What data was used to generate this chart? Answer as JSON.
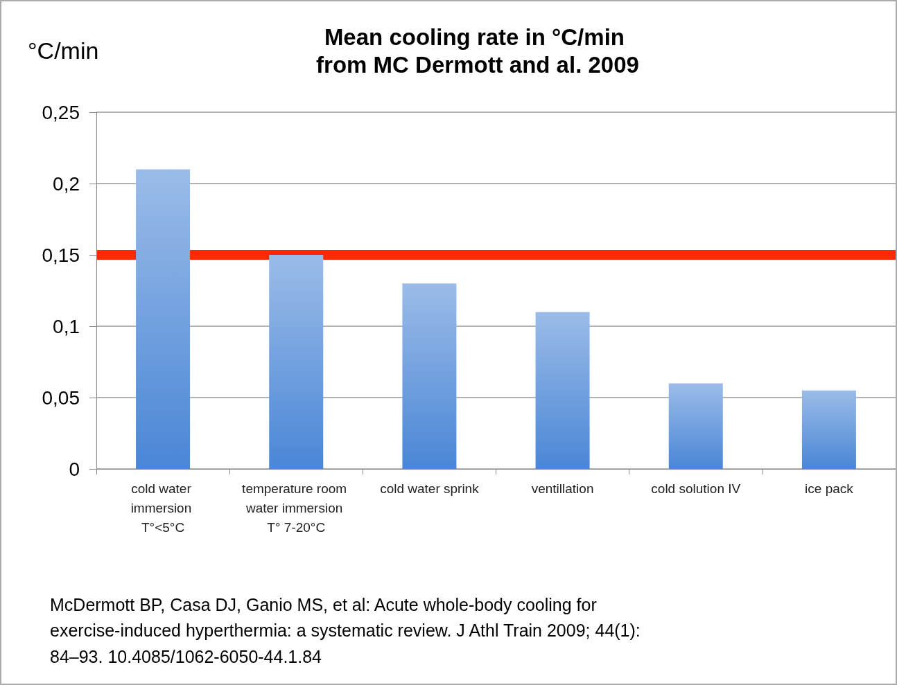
{
  "chart_data": {
    "type": "bar",
    "title": "Mean cooling rate in °C/min from MC Dermott and al. 2009",
    "ylabel": "°C/min",
    "categories": [
      "cold water immersion T°<5°C",
      "temperature room water immersion T° 7-20°C",
      "cold water sprink",
      "ventillation",
      "cold solution IV",
      "ice pack"
    ],
    "values": [
      0.21,
      0.15,
      0.13,
      0.11,
      0.06,
      0.055
    ],
    "color": "#4a86d6",
    "ylim": [
      0,
      0.25
    ],
    "yticks": [
      {
        "value": 0,
        "label": "0"
      },
      {
        "value": 0.05,
        "label": "0,05"
      },
      {
        "value": 0.1,
        "label": "0,1"
      },
      {
        "value": 0.15,
        "label": "0,15"
      },
      {
        "value": 0.2,
        "label": "0,2"
      },
      {
        "value": 0.25,
        "label": "0,25"
      }
    ],
    "grid": "y",
    "ref_lines": [
      {
        "axis": "y",
        "value": 0.15,
        "label": null,
        "color": "#ff2a00"
      }
    ],
    "annotations": [
      "McDermott BP, Casa DJ, Ganio MS, et al: Acute whole-body cooling for exercise-induced hyperthermia: a systematic review. J Athl Train 2009; 44(1): 84–93. 10.4085/1062-6050-44.1.84"
    ]
  }
}
